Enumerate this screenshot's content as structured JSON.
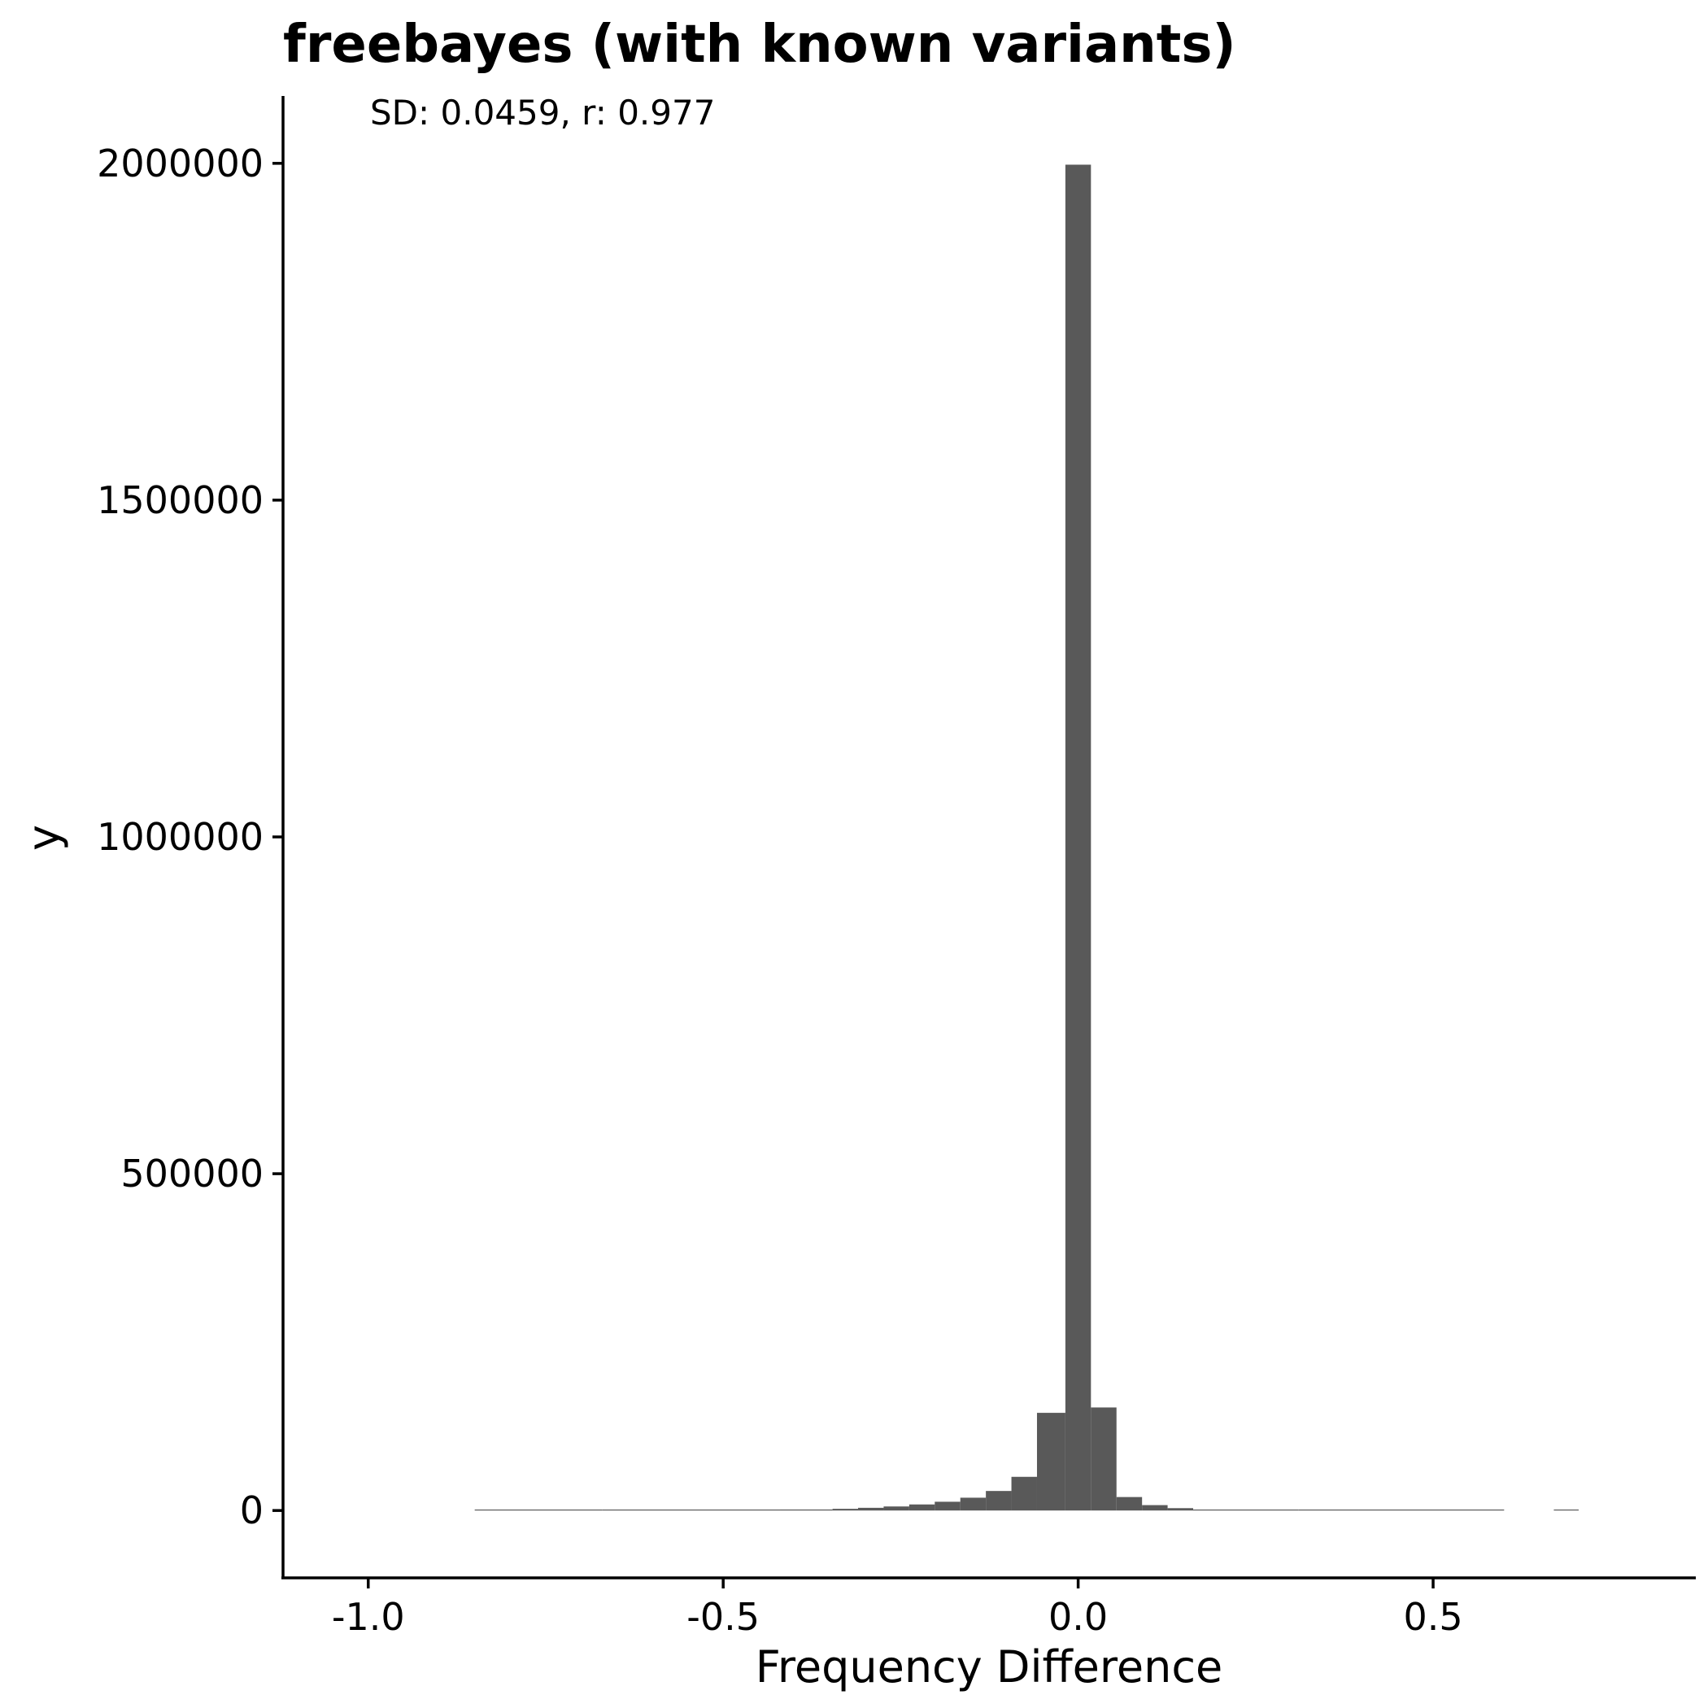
{
  "chart_data": {
    "type": "bar",
    "title": "freebayes (with known variants)",
    "annotation": "SD: 0.0459, r: 0.977",
    "xlabel": "Frequency Difference",
    "ylabel": "y",
    "xlim": [
      -1.12,
      0.87
    ],
    "ylim": [
      -100000,
      2100000
    ],
    "xticks": [
      -1.0,
      -0.5,
      0.0,
      0.5
    ],
    "xtick_labels": [
      "-1.0",
      "-0.5",
      "0.0",
      "0.5"
    ],
    "yticks": [
      0,
      500000,
      1000000,
      1500000,
      2000000
    ],
    "ytick_labels": [
      "0",
      "500000",
      "1000000",
      "1500000",
      "2000000"
    ],
    "bar_color": "#595959",
    "grid": false,
    "bins": [
      {
        "x0": -0.85,
        "x1": -0.67,
        "count": 300
      },
      {
        "x0": -0.67,
        "x1": -0.42,
        "count": 900
      },
      {
        "x0": -0.42,
        "x1": -0.346,
        "count": 1500
      },
      {
        "x0": -0.346,
        "x1": -0.31,
        "count": 2500
      },
      {
        "x0": -0.31,
        "x1": -0.274,
        "count": 4000
      },
      {
        "x0": -0.274,
        "x1": -0.238,
        "count": 6000
      },
      {
        "x0": -0.238,
        "x1": -0.202,
        "count": 9000
      },
      {
        "x0": -0.202,
        "x1": -0.166,
        "count": 13000
      },
      {
        "x0": -0.166,
        "x1": -0.13,
        "count": 19000
      },
      {
        "x0": -0.13,
        "x1": -0.094,
        "count": 29000
      },
      {
        "x0": -0.094,
        "x1": -0.058,
        "count": 50000
      },
      {
        "x0": -0.058,
        "x1": -0.018,
        "count": 145000
      },
      {
        "x0": -0.018,
        "x1": 0.018,
        "count": 1998000
      },
      {
        "x0": 0.018,
        "x1": 0.054,
        "count": 153000
      },
      {
        "x0": 0.054,
        "x1": 0.09,
        "count": 20000
      },
      {
        "x0": 0.09,
        "x1": 0.126,
        "count": 8000
      },
      {
        "x0": 0.126,
        "x1": 0.162,
        "count": 3500
      },
      {
        "x0": 0.162,
        "x1": 0.31,
        "count": 1200
      },
      {
        "x0": 0.31,
        "x1": 0.6,
        "count": 400
      },
      {
        "x0": 0.67,
        "x1": 0.705,
        "count": 150
      }
    ]
  }
}
